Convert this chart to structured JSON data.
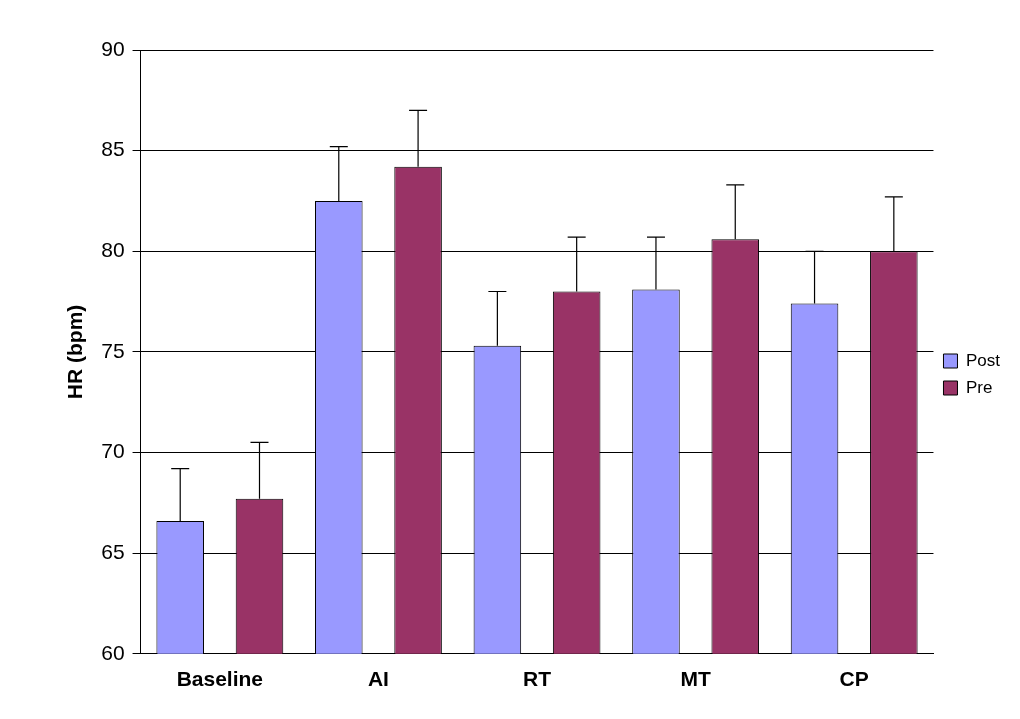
{
  "chart_data": {
    "type": "bar",
    "ylabel": "HR (bpm)",
    "categories": [
      "Baseline",
      "AI",
      "RT",
      "MT",
      "CP"
    ],
    "series": [
      {
        "name": "Post",
        "color": "#9999ff",
        "values": [
          66.6,
          82.5,
          75.3,
          78.1,
          77.4
        ],
        "errors": [
          [
            66.6,
            69.2
          ],
          [
            82.5,
            85.2
          ],
          [
            75.3,
            78.0
          ],
          [
            78.1,
            80.7
          ],
          [
            77.4,
            80.0
          ]
        ]
      },
      {
        "name": "Pre",
        "color": "#993366",
        "values": [
          67.7,
          84.2,
          78.0,
          80.6,
          80.0
        ],
        "errors": [
          [
            67.7,
            70.5
          ],
          [
            84.2,
            87.0
          ],
          [
            78.0,
            80.7
          ],
          [
            80.6,
            83.3
          ],
          [
            80.0,
            82.7
          ]
        ]
      }
    ],
    "ylim": [
      60,
      90
    ],
    "yticks": [
      60,
      65,
      70,
      75,
      80,
      85,
      90
    ],
    "grid": "y",
    "legend": "right"
  }
}
